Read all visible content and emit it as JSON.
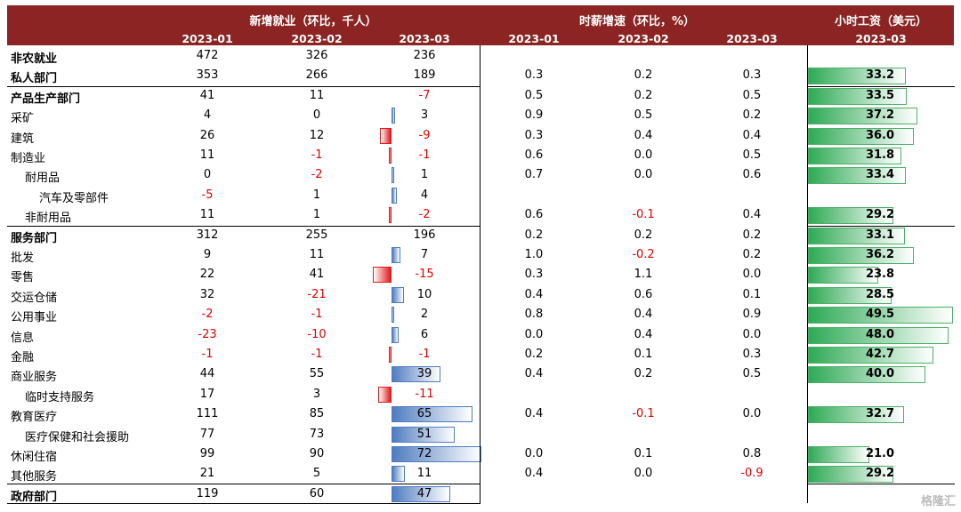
{
  "header": {
    "group1_title": "新增就业（环比，千人）",
    "group2_title": "时薪增速（环比，%）",
    "group3_title": "小时工资（美元）",
    "group1_months": [
      "2023-01",
      "2023-02",
      "2023-03"
    ],
    "group2_months": [
      "2023-01",
      "2023-02",
      "2023-03"
    ],
    "group3_month": "2023-03"
  },
  "rows": [
    {
      "label": "非农就业",
      "bold": true,
      "indent": 0,
      "emp": [
        "472",
        "326",
        "236"
      ],
      "emp_bar": null,
      "wg": [
        "",
        "",
        ""
      ],
      "wage": null
    },
    {
      "label": "私人部门",
      "bold": true,
      "indent": 0,
      "emp": [
        "353",
        "266",
        "189"
      ],
      "emp_bar": null,
      "wg": [
        "0.3",
        "0.2",
        "0.3"
      ],
      "wage": "33.2"
    },
    {
      "label": "产品生产部门",
      "bold": true,
      "indent": 0,
      "emp": [
        "41",
        "11",
        "-7"
      ],
      "emp_bar": null,
      "wg": [
        "0.5",
        "0.2",
        "0.5"
      ],
      "wage": "33.5"
    },
    {
      "label": "采矿",
      "bold": false,
      "indent": 0,
      "emp": [
        "4",
        "0",
        "3"
      ],
      "emp_bar": 3,
      "wg": [
        "0.9",
        "0.5",
        "0.2"
      ],
      "wage": "37.2"
    },
    {
      "label": "建筑",
      "bold": false,
      "indent": 0,
      "emp": [
        "26",
        "12",
        "-9"
      ],
      "emp_bar": -9,
      "wg": [
        "0.3",
        "0.4",
        "0.4"
      ],
      "wage": "36.0"
    },
    {
      "label": "制造业",
      "bold": false,
      "indent": 0,
      "emp": [
        "11",
        "-1",
        "-1"
      ],
      "emp_bar": -1,
      "wg": [
        "0.6",
        "0.0",
        "0.5"
      ],
      "wage": "31.8"
    },
    {
      "label": "耐用品",
      "bold": false,
      "indent": 1,
      "emp": [
        "0",
        "-2",
        "1"
      ],
      "emp_bar": 1,
      "wg": [
        "0.7",
        "0.0",
        "0.6"
      ],
      "wage": "33.4"
    },
    {
      "label": "汽车及零部件",
      "bold": false,
      "indent": 2,
      "emp": [
        "-5",
        "1",
        "4"
      ],
      "emp_bar": 4,
      "wg": [
        "",
        "",
        ""
      ],
      "wage": null
    },
    {
      "label": "非耐用品",
      "bold": false,
      "indent": 1,
      "emp": [
        "11",
        "1",
        "-2"
      ],
      "emp_bar": -2,
      "wg": [
        "0.6",
        "-0.1",
        "0.4"
      ],
      "wage": "29.2"
    },
    {
      "label": "服务部门",
      "bold": true,
      "indent": 0,
      "emp": [
        "312",
        "255",
        "196"
      ],
      "emp_bar": null,
      "wg": [
        "0.2",
        "0.2",
        "0.2"
      ],
      "wage": "33.1"
    },
    {
      "label": "批发",
      "bold": false,
      "indent": 0,
      "emp": [
        "9",
        "11",
        "7"
      ],
      "emp_bar": 7,
      "wg": [
        "1.0",
        "-0.2",
        "0.2"
      ],
      "wage": "36.2"
    },
    {
      "label": "零售",
      "bold": false,
      "indent": 0,
      "emp": [
        "22",
        "41",
        "-15"
      ],
      "emp_bar": -15,
      "wg": [
        "0.3",
        "1.1",
        "0.0"
      ],
      "wage": "23.8"
    },
    {
      "label": "交运仓储",
      "bold": false,
      "indent": 0,
      "emp": [
        "32",
        "-21",
        "10"
      ],
      "emp_bar": 10,
      "wg": [
        "0.4",
        "0.6",
        "0.1"
      ],
      "wage": "28.5"
    },
    {
      "label": "公用事业",
      "bold": false,
      "indent": 0,
      "emp": [
        "-2",
        "-1",
        "2"
      ],
      "emp_bar": 2,
      "wg": [
        "0.8",
        "0.4",
        "0.9"
      ],
      "wage": "49.5"
    },
    {
      "label": "信息",
      "bold": false,
      "indent": 0,
      "emp": [
        "-23",
        "-10",
        "6"
      ],
      "emp_bar": 6,
      "wg": [
        "0.0",
        "0.4",
        "0.0"
      ],
      "wage": "48.0"
    },
    {
      "label": "金融",
      "bold": false,
      "indent": 0,
      "emp": [
        "-1",
        "-1",
        "-1"
      ],
      "emp_bar": -1,
      "wg": [
        "0.2",
        "0.1",
        "0.3"
      ],
      "wage": "42.7"
    },
    {
      "label": "商业服务",
      "bold": false,
      "indent": 0,
      "emp": [
        "44",
        "55",
        "39"
      ],
      "emp_bar": 39,
      "wg": [
        "0.4",
        "0.2",
        "0.5"
      ],
      "wage": "40.0"
    },
    {
      "label": "临时支持服务",
      "bold": false,
      "indent": 1,
      "emp": [
        "17",
        "3",
        "-11"
      ],
      "emp_bar": -11,
      "wg": [
        "",
        "",
        ""
      ],
      "wage": null
    },
    {
      "label": "教育医疗",
      "bold": false,
      "indent": 0,
      "emp": [
        "111",
        "85",
        "65"
      ],
      "emp_bar": 65,
      "wg": [
        "0.4",
        "-0.1",
        "0.0"
      ],
      "wage": "32.7"
    },
    {
      "label": "医疗保健和社会援助",
      "bold": false,
      "indent": 1,
      "emp": [
        "77",
        "73",
        "51"
      ],
      "emp_bar": 51,
      "wg": [
        "",
        "",
        ""
      ],
      "wage": null
    },
    {
      "label": "休闲住宿",
      "bold": false,
      "indent": 0,
      "emp": [
        "99",
        "90",
        "72"
      ],
      "emp_bar": 72,
      "wg": [
        "0.0",
        "0.1",
        "0.8"
      ],
      "wage": "21.0"
    },
    {
      "label": "其他服务",
      "bold": false,
      "indent": 0,
      "emp": [
        "21",
        "5",
        "11"
      ],
      "emp_bar": 11,
      "wg": [
        "0.4",
        "0.0",
        "-0.9"
      ],
      "wage": "29.2"
    },
    {
      "label": "政府部门",
      "bold": true,
      "indent": 0,
      "emp": [
        "119",
        "60",
        "47"
      ],
      "emp_bar": 47,
      "wg": [
        "",
        "",
        ""
      ],
      "wage": null
    }
  ],
  "colors": {
    "header_bg": "#8b2422",
    "negative_text": "#e00000",
    "pos_bar": "#4f7cc0",
    "neg_bar": "#e11a1a",
    "wage_bar": "#2eaa55"
  },
  "watermark": "格隆汇"
}
